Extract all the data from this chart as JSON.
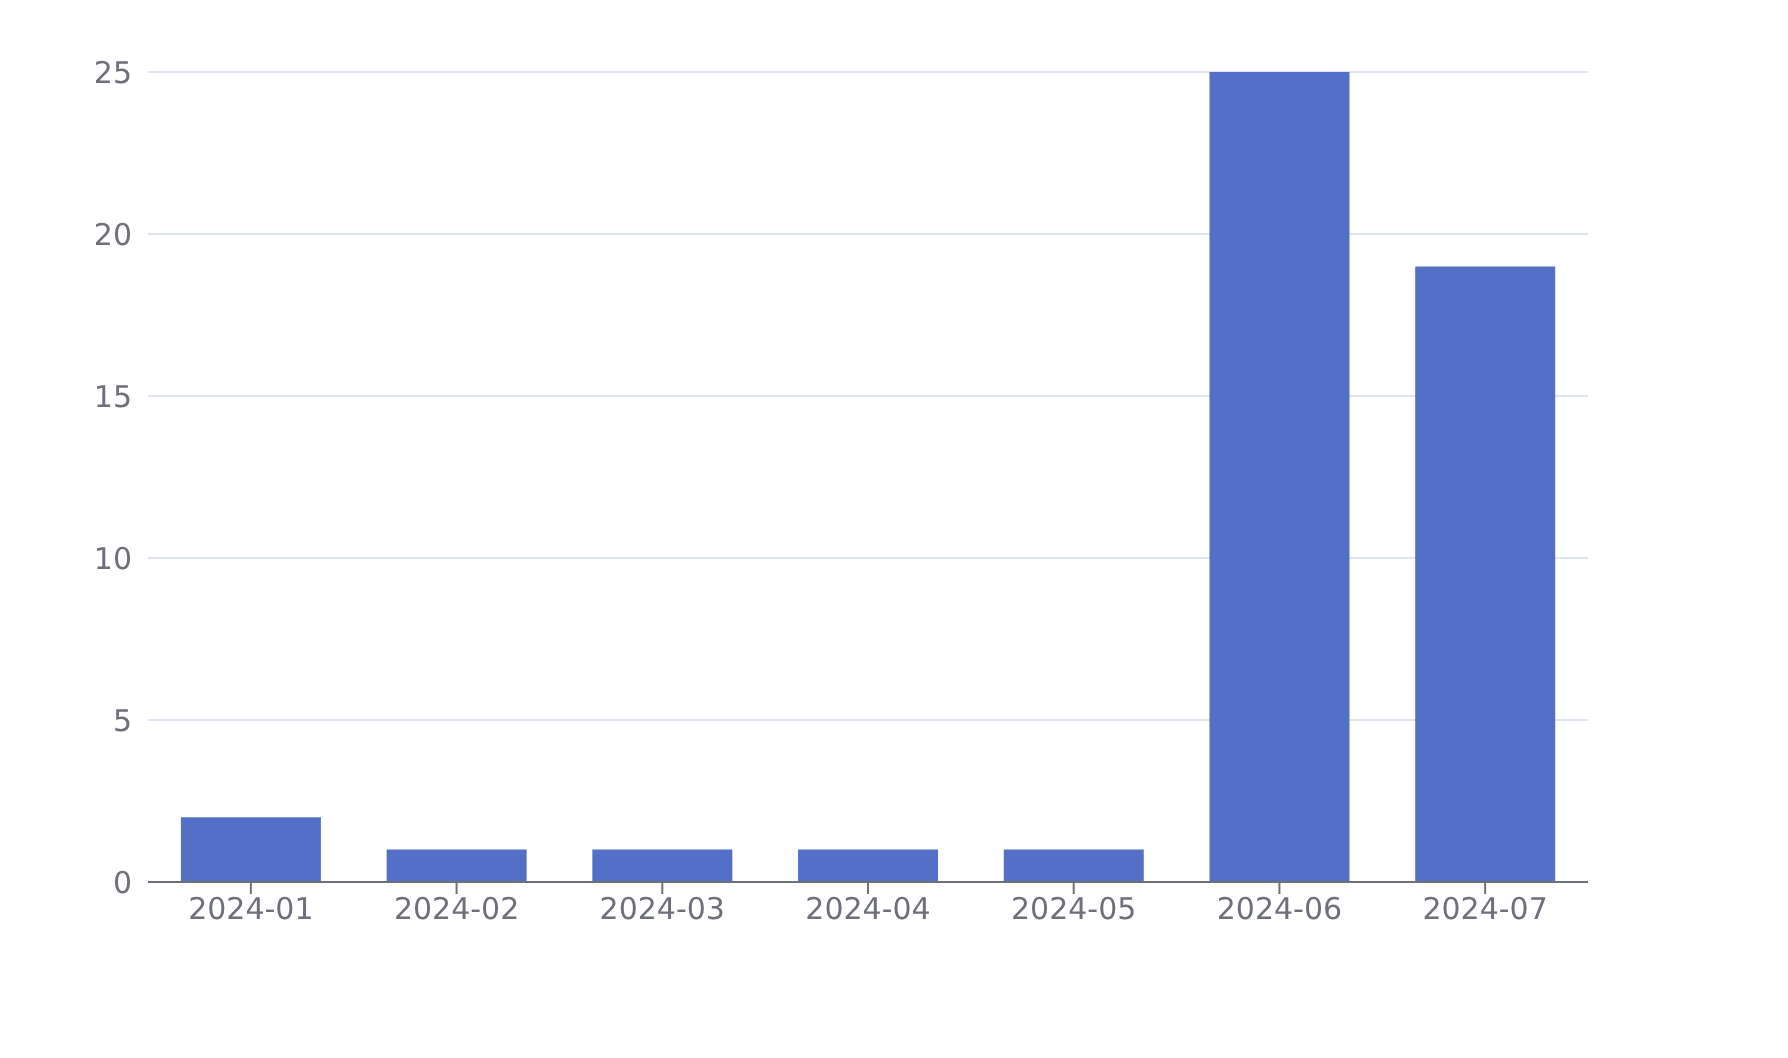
{
  "chart_data": {
    "type": "bar",
    "categories": [
      "2024-01",
      "2024-02",
      "2024-03",
      "2024-04",
      "2024-05",
      "2024-06",
      "2024-07"
    ],
    "values": [
      2,
      1,
      1,
      1,
      1,
      25,
      19
    ],
    "color": "#5470c6",
    "ylim": [
      0,
      25
    ],
    "yticks": [
      0,
      5,
      10,
      15,
      20,
      25
    ],
    "grid": "y"
  }
}
